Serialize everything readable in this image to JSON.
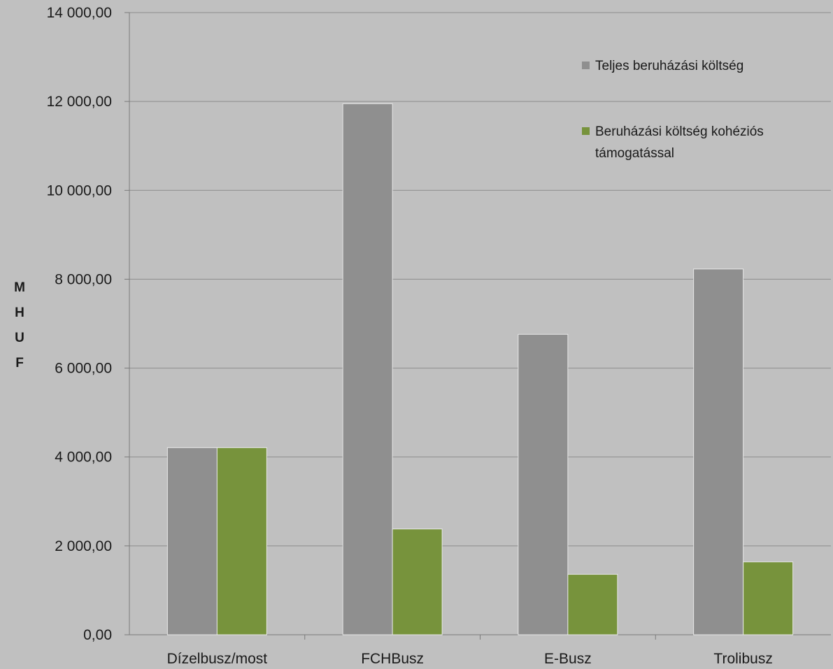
{
  "chart_data": {
    "type": "bar",
    "title": "",
    "xlabel": "",
    "ylabel": "MHUF",
    "categories": [
      "Dízelbusz/most",
      "FCHBusz",
      "E-Busz",
      "Trolibusz"
    ],
    "series": [
      {
        "name": "Teljes beruházási költség",
        "color": "#8f8f8f",
        "values": [
          4210,
          11950,
          6760,
          8230
        ]
      },
      {
        "name": "Beruházási költség kohéziós támogatással",
        "color": "#77933c",
        "values": [
          4210,
          2380,
          1360,
          1640
        ]
      }
    ],
    "ylim": [
      0,
      14000
    ],
    "yticks": [
      "0,00",
      "2 000,00",
      "4 000,00",
      "6 000,00",
      "8 000,00",
      "10 000,00",
      "12 000,00",
      "14 000,00"
    ],
    "grid": true,
    "legend_position": "top-right"
  }
}
